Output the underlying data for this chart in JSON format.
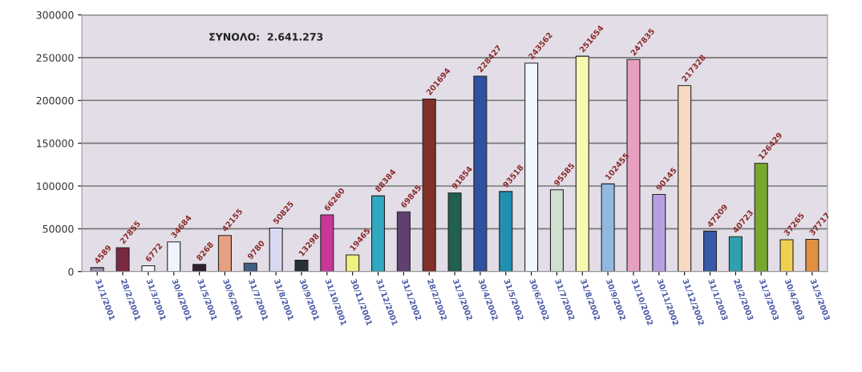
{
  "chart_data": {
    "type": "bar",
    "categories": [
      "31/1/2001",
      "28/2/2001",
      "31/3/2001",
      "30/4/2001",
      "31/5/2001",
      "30/6/2001",
      "31/7/2001",
      "31/8/2001",
      "30/9/2001",
      "31/10/2001",
      "30/11/2001",
      "31/12/2001",
      "31/1/2002",
      "28/2/2002",
      "31/3/2002",
      "30/4/2002",
      "31/5/2002",
      "30/6/2002",
      "31/7/2002",
      "31/8/2002",
      "30/9/2002",
      "31/10/2002",
      "30/11/2002",
      "31/12/2002",
      "31/1/2003",
      "28/2/2003",
      "31/3/2003",
      "30/4/2003",
      "31/5/2003"
    ],
    "values": [
      4589,
      27855,
      6772,
      34684,
      8268,
      42155,
      9780,
      50825,
      13298,
      66260,
      19465,
      88384,
      69845,
      201694,
      91854,
      228427,
      93518,
      243562,
      95585,
      251654,
      102455,
      247835,
      90145,
      217328,
      47209,
      40723,
      126429,
      37265,
      37717
    ],
    "colors": [
      "#9a8fb0",
      "#7a2a40",
      "#f4f4f4",
      "#f0f4ff",
      "#302030",
      "#e8a080",
      "#406080",
      "#d8d8f0",
      "#283038",
      "#c83898",
      "#f0f080",
      "#30a8c0",
      "#604070",
      "#803028",
      "#206050",
      "#3050a0",
      "#2090b0",
      "#f0f8ff",
      "#d0e0d0",
      "#f8f8b0",
      "#90b8e0",
      "#e8a0c0",
      "#b8a0e0",
      "#f8d8c0",
      "#3858a8",
      "#30a0b0",
      "#78a830",
      "#f0d050",
      "#e09040"
    ],
    "ylim": [
      0,
      300000
    ],
    "yticks": [
      0,
      50000,
      100000,
      150000,
      200000,
      250000,
      300000
    ],
    "grid": "y",
    "data_labels": true,
    "annotations": [
      "ΣΥΝΟΛΟ:  2.641.273"
    ]
  }
}
